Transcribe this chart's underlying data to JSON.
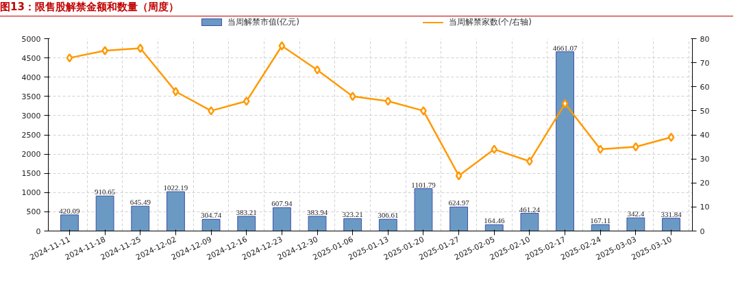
{
  "chart_data": {
    "type": "bar",
    "title": "图13：限售股解禁金额和数量（周度）",
    "categories": [
      "2024-11-11",
      "2024-11-18",
      "2024-11-25",
      "2024-12-02",
      "2024-12-09",
      "2024-12-16",
      "2024-12-23",
      "2024-12-30",
      "2025-01-06",
      "2025-01-13",
      "2025-01-20",
      "2025-01-27",
      "2025-02-05",
      "2025-02-10",
      "2025-02-17",
      "2025-02-24",
      "2025-03-03",
      "2025-03-10"
    ],
    "series": [
      {
        "name": "当周解禁市值(亿元)",
        "color": "#6a9ac4",
        "values": [
          420.09,
          910.65,
          645.49,
          1022.19,
          304.74,
          383.21,
          607.94,
          383.94,
          323.21,
          306.61,
          1101.79,
          624.97,
          164.46,
          461.24,
          4661.07,
          167.11,
          342.4,
          331.84
        ],
        "value_labels": [
          "420.09",
          "910.65",
          "645.49",
          "1022.19",
          "304.74",
          "383.21",
          "607.94",
          "383.94",
          "323.21",
          "306.61",
          "1101.79",
          "624.97",
          "164.46",
          "461.24",
          "4661.07",
          "167.11",
          "342.4",
          "331.84"
        ]
      },
      {
        "name": "当周解禁家数(个/右轴)",
        "type": "line",
        "axis": "y2",
        "color": "#ff9900",
        "marker": "diamond",
        "values": [
          72,
          75,
          76,
          58,
          50,
          54,
          77,
          67,
          56,
          54,
          50,
          23,
          34,
          29,
          53,
          34,
          35,
          39
        ]
      }
    ],
    "ylim": [
      0,
      5000
    ],
    "yticks": [
      0,
      500,
      1000,
      1500,
      2000,
      2500,
      3000,
      3500,
      4000,
      4500,
      5000
    ],
    "y2lim": [
      0,
      80
    ],
    "y2ticks": [
      0,
      10,
      20,
      30,
      40,
      50,
      60,
      70,
      80
    ],
    "grid": true,
    "legend": "top"
  }
}
